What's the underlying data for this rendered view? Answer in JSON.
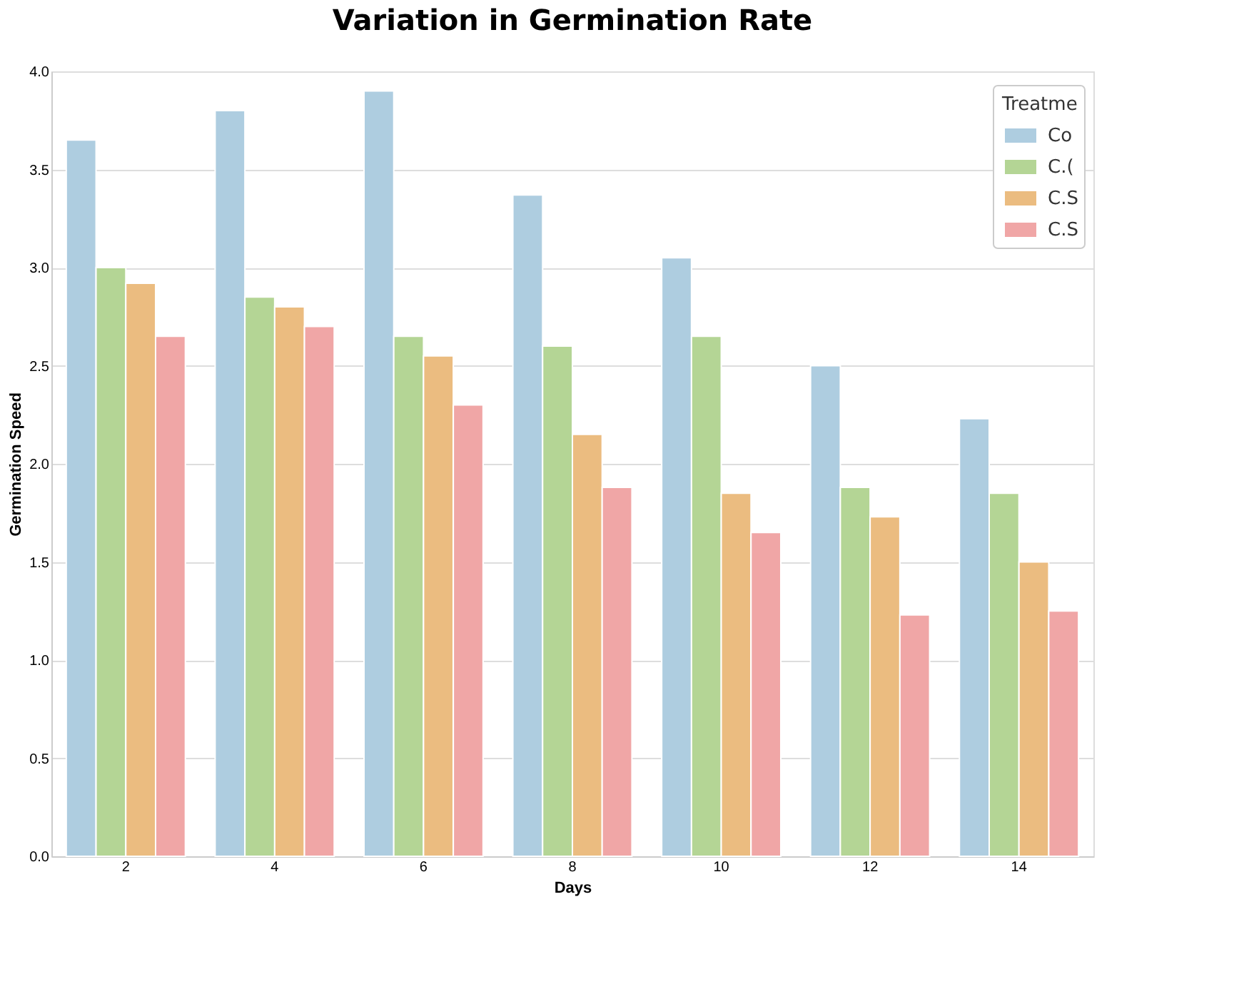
{
  "chart_data": {
    "type": "bar",
    "title": "Variation in Germination Rate",
    "xlabel": "Days",
    "ylabel": "Germination Speed",
    "legend_title": "Treatme",
    "categories": [
      "2",
      "4",
      "6",
      "8",
      "10",
      "12",
      "14"
    ],
    "series": [
      {
        "name": "Co",
        "color": "#aecde0",
        "values": [
          3.65,
          3.8,
          3.9,
          3.37,
          3.05,
          2.5,
          2.23
        ]
      },
      {
        "name": "C.(",
        "color": "#b4d595",
        "values": [
          3.0,
          2.85,
          2.65,
          2.6,
          2.65,
          1.88,
          1.85
        ]
      },
      {
        "name": "C.S",
        "color": "#ebbc80",
        "values": [
          2.92,
          2.8,
          2.55,
          2.15,
          1.85,
          1.73,
          1.5
        ]
      },
      {
        "name": "C.S",
        "color": "#f0a6a6",
        "values": [
          2.65,
          2.7,
          2.3,
          1.88,
          1.65,
          1.23,
          1.25
        ]
      }
    ],
    "ylim": [
      0,
      4.0
    ],
    "yticks": [
      {
        "value": 0,
        "label": "0.0"
      },
      0.5,
      {
        "value": 1,
        "label": "1.0"
      },
      1.5,
      {
        "value": 2,
        "label": "2.0"
      },
      2.5,
      {
        "value": 3,
        "label": "3.0"
      },
      3.5,
      {
        "value": 4,
        "label": "4.0"
      }
    ],
    "grid": "y",
    "legend": "top right"
  }
}
